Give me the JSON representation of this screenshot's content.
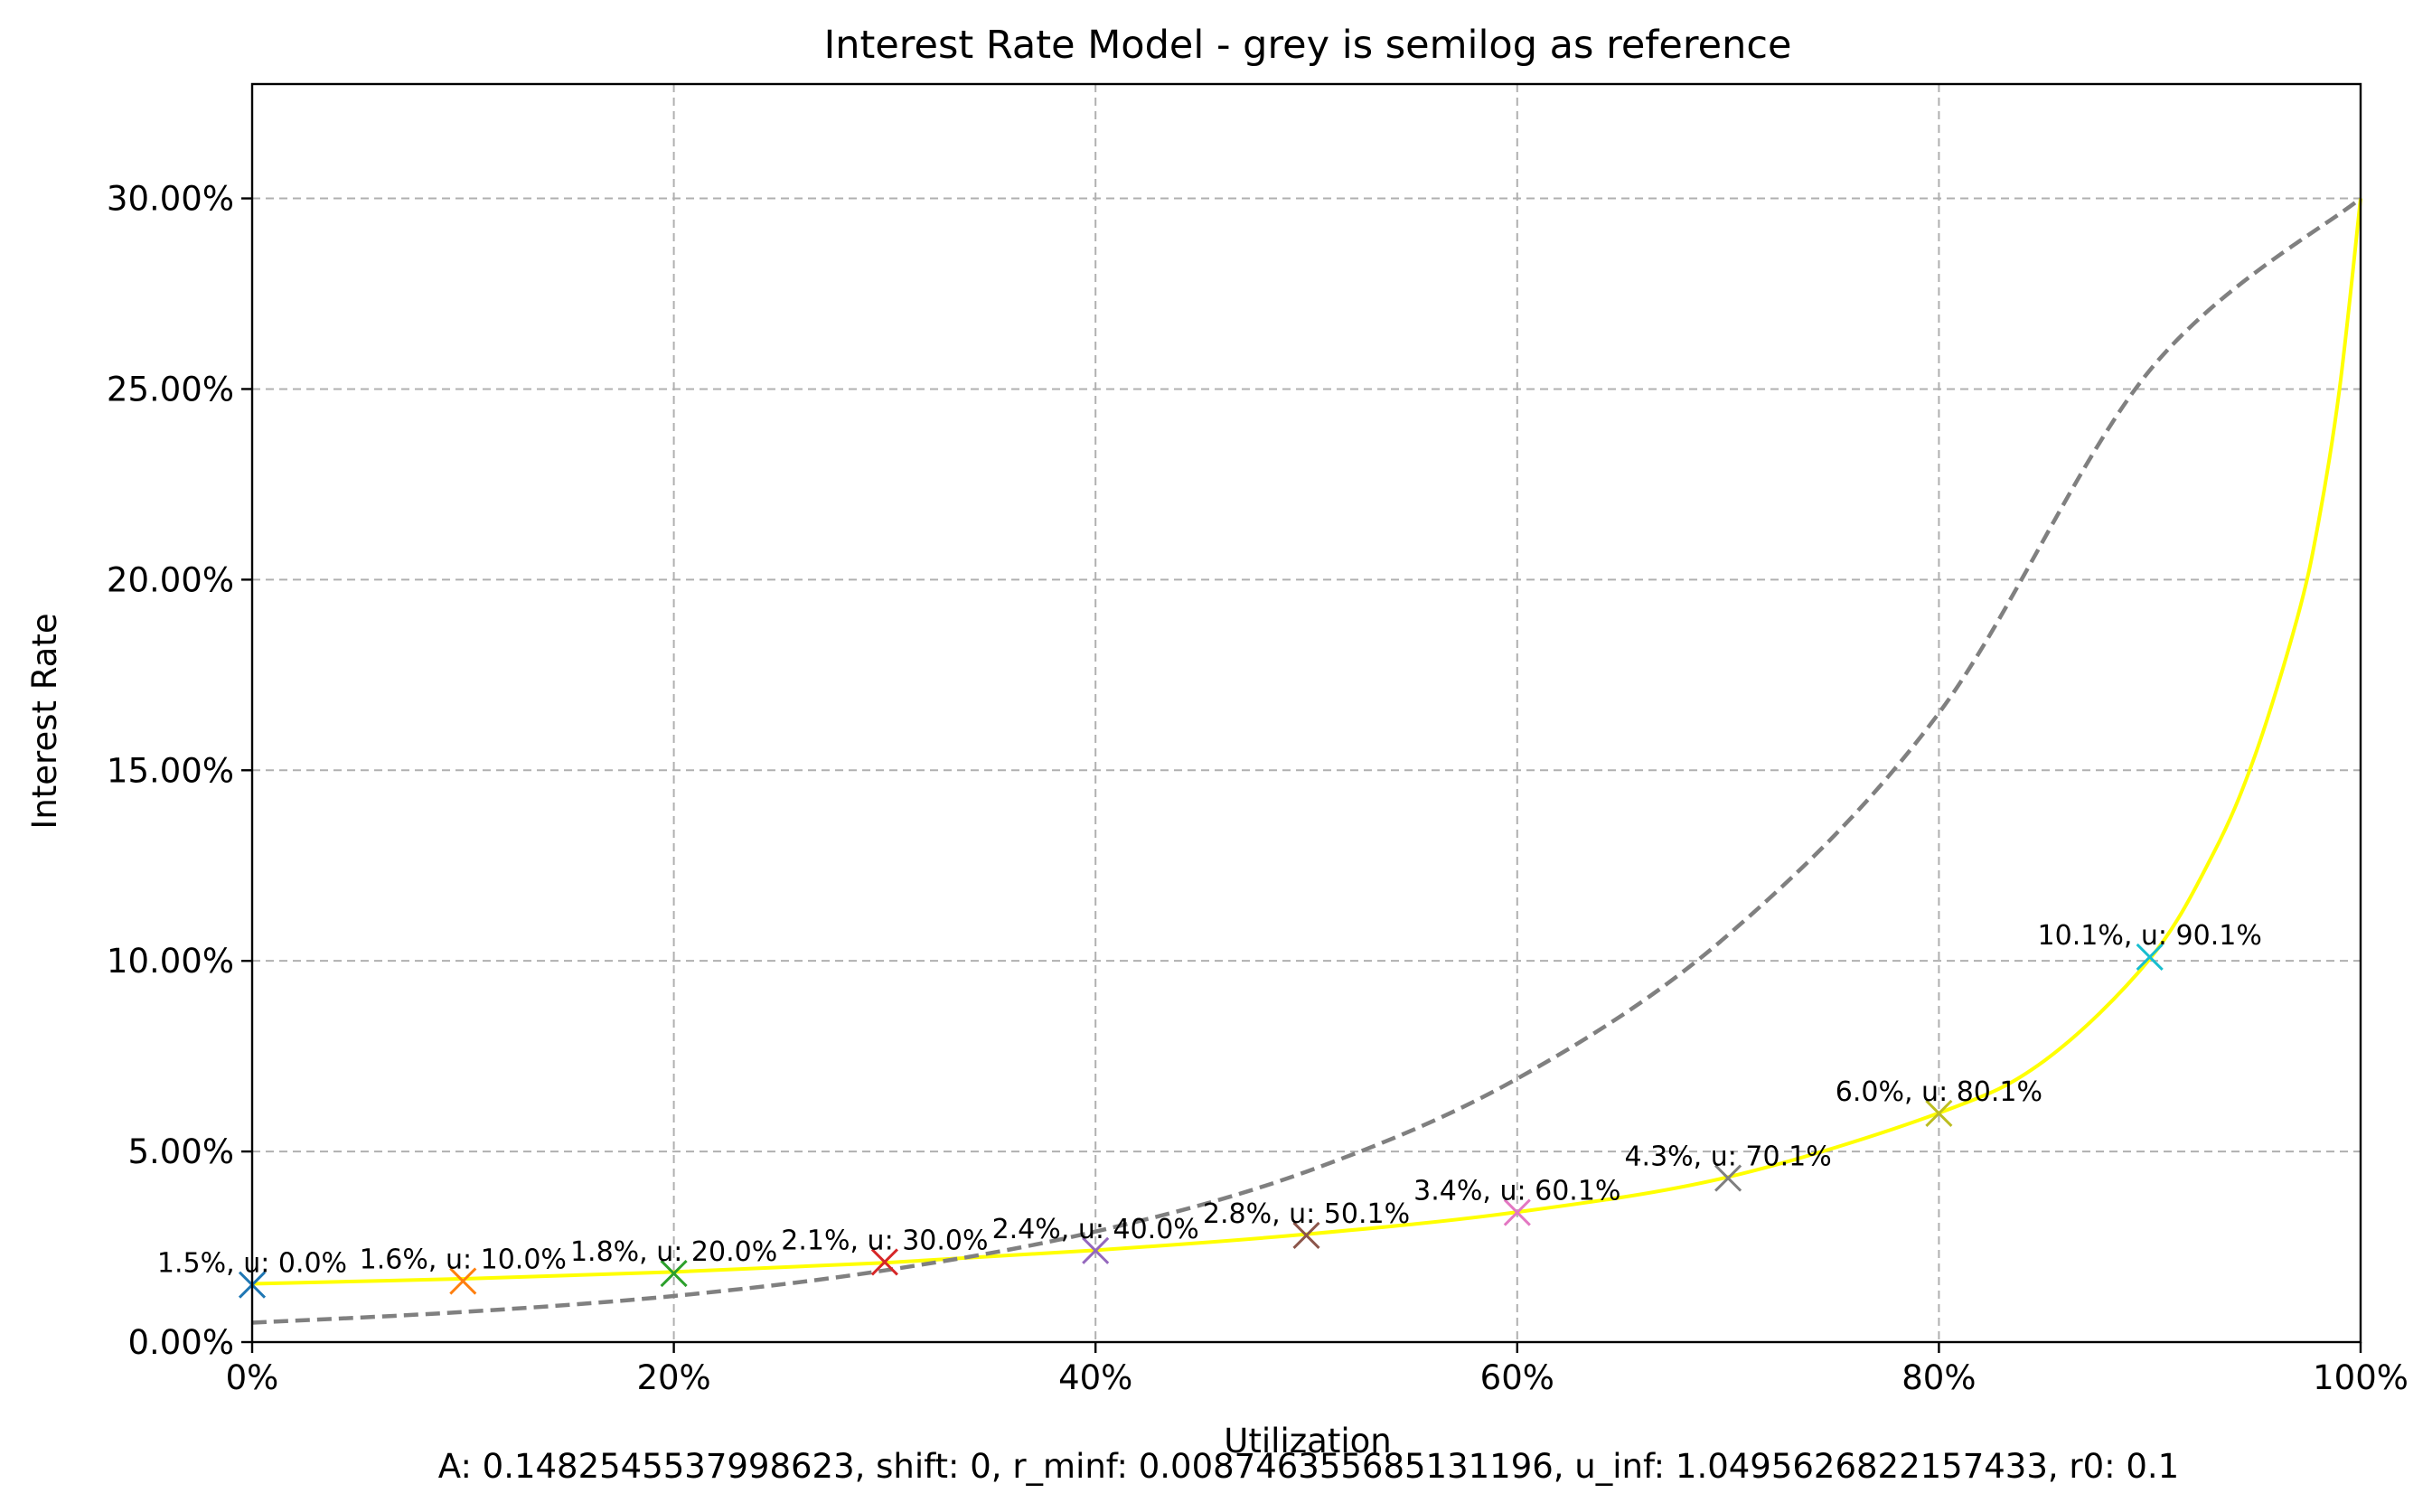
{
  "chart_data": {
    "type": "line",
    "title": "Interest Rate Model - grey is semilog as reference",
    "xlabel": "Utilization",
    "ylabel": "Interest Rate",
    "footer": "A: 0.1482545537998623, shift: 0, r_minf: 0.008746355685131196, u_inf: 1.0495626822157433, r0: 0.1",
    "xlim": [
      0,
      1
    ],
    "ylim": [
      0,
      0.33
    ],
    "grid": true,
    "x_ticks": [
      {
        "value": 0.0,
        "label": "0%"
      },
      {
        "value": 0.2,
        "label": "20%"
      },
      {
        "value": 0.4,
        "label": "40%"
      },
      {
        "value": 0.6,
        "label": "60%"
      },
      {
        "value": 0.8,
        "label": "80%"
      },
      {
        "value": 1.0,
        "label": "100%"
      }
    ],
    "y_ticks": [
      {
        "value": 0.0,
        "label": "0.00%"
      },
      {
        "value": 0.05,
        "label": "5.00%"
      },
      {
        "value": 0.1,
        "label": "10.00%"
      },
      {
        "value": 0.15,
        "label": "15.00%"
      },
      {
        "value": 0.2,
        "label": "20.00%"
      },
      {
        "value": 0.25,
        "label": "25.00%"
      },
      {
        "value": 0.3,
        "label": "30.00%"
      }
    ],
    "series": [
      {
        "style": "solid",
        "color": "#ffff00",
        "x": [
          0.0,
          0.1,
          0.2,
          0.3,
          0.4,
          0.5,
          0.6,
          0.7,
          0.8,
          0.85,
          0.9,
          0.93,
          0.95,
          0.97,
          0.98,
          0.99,
          1.0
        ],
        "y": [
          0.0153,
          0.0166,
          0.0184,
          0.0208,
          0.0241,
          0.0283,
          0.0341,
          0.0433,
          0.0601,
          0.0738,
          0.1005,
          0.128,
          0.154,
          0.19,
          0.215,
          0.25,
          0.3
        ]
      },
      {
        "style": "dashed",
        "color": "#808080",
        "x": [
          0.0,
          0.1,
          0.2,
          0.3,
          0.4,
          0.5,
          0.6,
          0.7,
          0.8,
          0.9,
          1.0
        ],
        "y": [
          0.0051,
          0.0079,
          0.0121,
          0.0188,
          0.029,
          0.0447,
          0.0691,
          0.1068,
          0.165,
          0.2549,
          0.3
        ]
      }
    ],
    "markers": [
      {
        "x": 0.0,
        "y": 0.015,
        "label": "1.5%, u: 0.0%",
        "color": "#1f77b4"
      },
      {
        "x": 0.1,
        "y": 0.016,
        "label": "1.6%, u: 10.0%",
        "color": "#ff7f0e"
      },
      {
        "x": 0.2,
        "y": 0.018,
        "label": "1.8%, u: 20.0%",
        "color": "#2ca02c"
      },
      {
        "x": 0.3,
        "y": 0.021,
        "label": "2.1%, u: 30.0%",
        "color": "#d62728"
      },
      {
        "x": 0.4,
        "y": 0.024,
        "label": "2.4%, u: 40.0%",
        "color": "#9467bd"
      },
      {
        "x": 0.5,
        "y": 0.028,
        "label": "2.8%, u: 50.1%",
        "color": "#8c564b"
      },
      {
        "x": 0.6,
        "y": 0.034,
        "label": "3.4%, u: 60.1%",
        "color": "#e377c2"
      },
      {
        "x": 0.7,
        "y": 0.043,
        "label": "4.3%, u: 70.1%",
        "color": "#7f7f7f"
      },
      {
        "x": 0.8,
        "y": 0.06,
        "label": "6.0%, u: 80.1%",
        "color": "#bcbd22"
      },
      {
        "x": 0.9,
        "y": 0.101,
        "label": "10.1%, u: 90.1%",
        "color": "#17becf"
      }
    ]
  }
}
